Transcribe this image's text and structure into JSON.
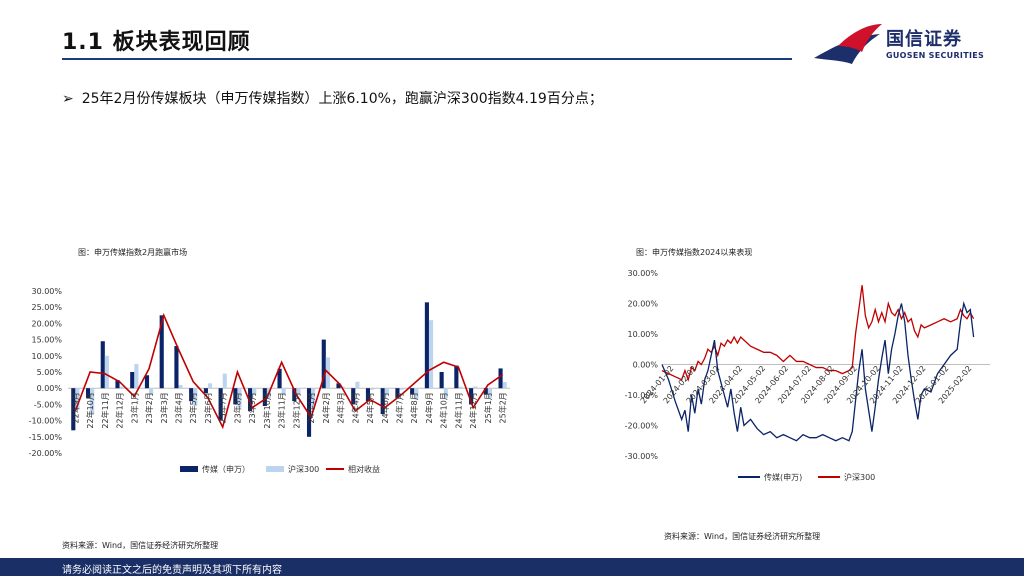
{
  "header": {
    "title": "1.1 板块表现回顾",
    "logo_cn": "国信证券",
    "logo_en": "GUOSEN SECURITIES"
  },
  "bullet": {
    "mark": "➢",
    "text": "25年2月份传媒板块（申万传媒指数）上涨6.10%，跑赢沪深300指数4.19百分点；"
  },
  "colors": {
    "navy": "#0b2467",
    "lightblue": "#bcd4ef",
    "red": "#c00000",
    "footer": "#1a2f66"
  },
  "left_chart": {
    "caption": "图：申万传媒指数2月跑赢市场",
    "source": "资料来源：Wind，国信证券经济研究所整理"
  },
  "right_chart": {
    "caption": "图：申万传媒指数2024以来表现",
    "source": "资料来源：Wind，国信证券经济研究所整理"
  },
  "chart_data": [
    {
      "type": "bar",
      "categories": [
        "22年9月",
        "22年10月",
        "22年11月",
        "22年12月",
        "23年1月",
        "23年2月",
        "23年3月",
        "23年4月",
        "23年5月",
        "23年6月",
        "23年7月",
        "23年8月",
        "23年9月",
        "23年10月",
        "23年11月",
        "23年12月",
        "24年1月",
        "24年2月",
        "24年3月",
        "24年4月",
        "24年5月",
        "24年6月",
        "24年7月",
        "24年8月",
        "24年9月",
        "24年10月",
        "24年11月",
        "24年12月",
        "25年1月",
        "25年2月"
      ],
      "series": [
        {
          "name": "传媒（申万）",
          "kind": "bar",
          "color": "#0b2467",
          "values": [
            -13,
            -3,
            14.5,
            2.5,
            5,
            4,
            22.5,
            13,
            -4,
            -1.5,
            -10,
            -5,
            -7,
            -5.5,
            6,
            -4,
            -15,
            15,
            1.5,
            -5,
            -4,
            -8,
            -3,
            -2,
            26.5,
            5,
            7,
            -5,
            -2,
            6.1
          ]
        },
        {
          "name": "沪深300",
          "kind": "bar",
          "color": "#bcd4ef",
          "values": [
            -6.5,
            -8,
            10,
            0.5,
            7.5,
            -2,
            0,
            1,
            -5.5,
            1.5,
            4.5,
            -6,
            -2,
            -3,
            -2,
            -2,
            -6,
            9.5,
            0.5,
            2,
            -0.5,
            -2,
            -0.5,
            -3.5,
            21,
            -3,
            0.5,
            0.5,
            -3,
            1.9
          ]
        },
        {
          "name": "相对收益",
          "kind": "line",
          "color": "#c00000",
          "values": [
            -7,
            5,
            4.5,
            2,
            -2.5,
            6,
            22.5,
            12,
            2,
            -3,
            -12,
            5,
            -6,
            -3,
            8,
            -2,
            -9,
            5.5,
            1,
            -7,
            -3.5,
            -6,
            -2.5,
            1.5,
            5.5,
            8,
            6.5,
            -6,
            1,
            4.2
          ]
        }
      ],
      "y_ticks": [
        "30.00%",
        "25.00%",
        "20.00%",
        "15.00%",
        "10.00%",
        "5.00%",
        "0.00%",
        "-5.00%",
        "-10.00%",
        "-15.00%",
        "-20.00%"
      ],
      "ylim": [
        -20,
        30
      ],
      "legend_position": "bottom"
    },
    {
      "type": "line",
      "x_ticks": [
        "2024-01-02",
        "2024-02-02",
        "2024-03-02",
        "2024-04-02",
        "2024-05-02",
        "2024-06-02",
        "2024-07-02",
        "2024-08-02",
        "2024-09-02",
        "2024-10-02",
        "2024-11-02",
        "2024-12-02",
        "2025-01-02",
        "2025-02-02"
      ],
      "y_ticks": [
        "30.00%",
        "20.00%",
        "10.00%",
        "0.00%",
        "-10.00%",
        "-20.00%",
        "-30.00%"
      ],
      "ylim": [
        -30,
        30
      ],
      "xlim": [
        0,
        100
      ],
      "series": [
        {
          "name": "传媒(申万)",
          "color": "#0b2467",
          "points": [
            [
              0,
              0
            ],
            [
              2,
              -5
            ],
            [
              4,
              -12
            ],
            [
              6,
              -18
            ],
            [
              7,
              -15
            ],
            [
              8,
              -22
            ],
            [
              9,
              -10
            ],
            [
              10,
              -16
            ],
            [
              11,
              -8
            ],
            [
              12,
              -13
            ],
            [
              13,
              -5
            ],
            [
              14,
              -2
            ],
            [
              15,
              3
            ],
            [
              16,
              8
            ],
            [
              17,
              -2
            ],
            [
              18,
              -6
            ],
            [
              19,
              -10
            ],
            [
              20,
              -14
            ],
            [
              21,
              -8
            ],
            [
              22,
              -16
            ],
            [
              23,
              -22
            ],
            [
              24,
              -14
            ],
            [
              25,
              -20
            ],
            [
              27,
              -18
            ],
            [
              29,
              -21
            ],
            [
              31,
              -23
            ],
            [
              33,
              -22
            ],
            [
              35,
              -24
            ],
            [
              37,
              -23
            ],
            [
              39,
              -24
            ],
            [
              41,
              -25
            ],
            [
              43,
              -23
            ],
            [
              45,
              -24
            ],
            [
              47,
              -24
            ],
            [
              49,
              -23
            ],
            [
              51,
              -24
            ],
            [
              53,
              -25
            ],
            [
              55,
              -24
            ],
            [
              57,
              -25
            ],
            [
              58,
              -22
            ],
            [
              59,
              -12
            ],
            [
              60,
              -2
            ],
            [
              61,
              5
            ],
            [
              62,
              -8
            ],
            [
              63,
              -15
            ],
            [
              64,
              -22
            ],
            [
              65,
              -14
            ],
            [
              66,
              -5
            ],
            [
              67,
              2
            ],
            [
              68,
              8
            ],
            [
              69,
              -3
            ],
            [
              70,
              5
            ],
            [
              71,
              10
            ],
            [
              72,
              16
            ],
            [
              73,
              20
            ],
            [
              74,
              14
            ],
            [
              75,
              3
            ],
            [
              76,
              -5
            ],
            [
              77,
              -12
            ],
            [
              78,
              -18
            ],
            [
              79,
              -10
            ],
            [
              80,
              -8
            ],
            [
              82,
              -9
            ],
            [
              84,
              -3
            ],
            [
              86,
              0
            ],
            [
              88,
              3
            ],
            [
              90,
              5
            ],
            [
              91,
              14
            ],
            [
              92,
              20
            ],
            [
              93,
              17
            ],
            [
              94,
              18
            ],
            [
              95,
              9
            ]
          ]
        },
        {
          "name": "沪深300",
          "color": "#c00000",
          "points": [
            [
              0,
              -2
            ],
            [
              2,
              -3
            ],
            [
              4,
              -4
            ],
            [
              6,
              -5
            ],
            [
              7,
              -2
            ],
            [
              8,
              -5
            ],
            [
              9,
              -1
            ],
            [
              10,
              -2
            ],
            [
              11,
              1
            ],
            [
              12,
              0
            ],
            [
              13,
              2
            ],
            [
              14,
              5
            ],
            [
              15,
              4
            ],
            [
              16,
              6
            ],
            [
              17,
              3
            ],
            [
              18,
              7
            ],
            [
              19,
              6
            ],
            [
              20,
              8
            ],
            [
              21,
              7
            ],
            [
              22,
              9
            ],
            [
              23,
              7
            ],
            [
              24,
              9
            ],
            [
              25,
              8
            ],
            [
              27,
              6
            ],
            [
              29,
              5
            ],
            [
              31,
              4
            ],
            [
              33,
              4
            ],
            [
              35,
              3
            ],
            [
              37,
              1
            ],
            [
              39,
              3
            ],
            [
              41,
              1
            ],
            [
              43,
              1
            ],
            [
              45,
              0
            ],
            [
              47,
              -1
            ],
            [
              49,
              -1
            ],
            [
              51,
              -2
            ],
            [
              53,
              -2
            ],
            [
              55,
              -3
            ],
            [
              57,
              -2
            ],
            [
              58,
              -1
            ],
            [
              59,
              10
            ],
            [
              60,
              18
            ],
            [
              61,
              26
            ],
            [
              62,
              16
            ],
            [
              63,
              12
            ],
            [
              64,
              14
            ],
            [
              65,
              18
            ],
            [
              66,
              14
            ],
            [
              67,
              17
            ],
            [
              68,
              14
            ],
            [
              69,
              20
            ],
            [
              70,
              17
            ],
            [
              71,
              16
            ],
            [
              72,
              18
            ],
            [
              73,
              15
            ],
            [
              74,
              17
            ],
            [
              75,
              14
            ],
            [
              76,
              15
            ],
            [
              77,
              11
            ],
            [
              78,
              9
            ],
            [
              79,
              13
            ],
            [
              80,
              12
            ],
            [
              82,
              13
            ],
            [
              84,
              14
            ],
            [
              86,
              15
            ],
            [
              88,
              14
            ],
            [
              90,
              15
            ],
            [
              91,
              18
            ],
            [
              92,
              16
            ],
            [
              93,
              15
            ],
            [
              94,
              17
            ],
            [
              95,
              15
            ]
          ]
        }
      ],
      "legend_position": "bottom"
    }
  ],
  "footer": {
    "disclaimer": "请务必阅读正文之后的免责声明及其项下所有内容"
  }
}
